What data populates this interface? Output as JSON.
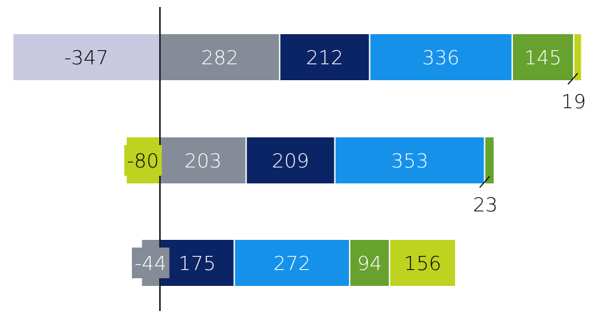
{
  "chart_data": {
    "type": "stacked-bar-horizontal",
    "categories": [
      null,
      null,
      null
    ],
    "xlim": [
      -377,
      1011
    ],
    "series": [
      {
        "color": "#c8c9e0",
        "text_color": "#000000",
        "values": [
          -347,
          null,
          null
        ]
      },
      {
        "color": "#858c98",
        "text_color": "#ffffff",
        "values": [
          282,
          203,
          -44
        ]
      },
      {
        "color": "#0b2466",
        "text_color": "#ffffff",
        "values": [
          212,
          209,
          175
        ]
      },
      {
        "color": "#1691ea",
        "text_color": "#ffffff",
        "values": [
          336,
          353,
          272
        ]
      },
      {
        "color": "#67a22f",
        "text_color": "#ffffff",
        "values": [
          145,
          23,
          94
        ]
      },
      {
        "color": "#bdd31f",
        "text_color": "#000000",
        "values": [
          19,
          -80,
          156
        ]
      }
    ]
  }
}
